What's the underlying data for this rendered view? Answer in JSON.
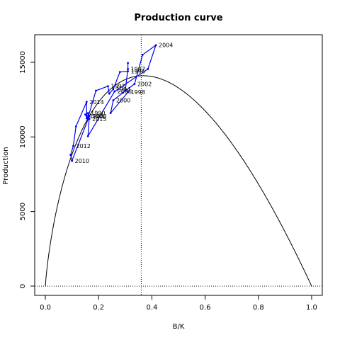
{
  "chart_data": {
    "type": "line",
    "title": "Production curve",
    "xlabel": "B/K",
    "ylabel": "Production",
    "xlim": [
      -0.04,
      1.04
    ],
    "ylim": [
      -620,
      16850
    ],
    "x_ticks": [
      0,
      0.2,
      0.4,
      0.6,
      0.8,
      1
    ],
    "x_tick_labels": [
      "0.0",
      "0.2",
      "0.4",
      "0.6",
      "0.8",
      "1.0"
    ],
    "y_ticks": [
      0,
      5000,
      10000,
      15000
    ],
    "y_tick_labels": [
      "0",
      "5000",
      "10000",
      "15000"
    ],
    "grid": false,
    "colors": {
      "curve": "#000000",
      "trajectory": "#0000ee",
      "reference": "#000000"
    },
    "production_curve": {
      "x_at_max": 0.36,
      "max_production": 14100
    },
    "reference_lines": {
      "vertical_x": 0.36,
      "horizontal_y": 0
    },
    "series": [
      {
        "points": [
          {
            "x": 0.155,
            "y": 11400,
            "label": "1988"
          },
          {
            "x": 0.15,
            "y": 11500,
            "label": ""
          },
          {
            "x": 0.16,
            "y": 11600,
            "label": "1990"
          },
          {
            "x": 0.16,
            "y": 11300,
            "label": ""
          },
          {
            "x": 0.19,
            "y": 13100,
            "label": ""
          },
          {
            "x": 0.235,
            "y": 13400,
            "label": "1992"
          },
          {
            "x": 0.24,
            "y": 12900,
            "label": ""
          },
          {
            "x": 0.255,
            "y": 13200,
            "label": "1994"
          },
          {
            "x": 0.28,
            "y": 14350,
            "label": ""
          },
          {
            "x": 0.31,
            "y": 14400,
            "label": "1996"
          },
          {
            "x": 0.31,
            "y": 14950,
            "label": ""
          },
          {
            "x": 0.31,
            "y": 14550,
            "label": "1997"
          },
          {
            "x": 0.3,
            "y": 13100,
            "label": ""
          },
          {
            "x": 0.31,
            "y": 13000,
            "label": "1998"
          },
          {
            "x": 0.245,
            "y": 11600,
            "label": ""
          },
          {
            "x": 0.255,
            "y": 12450,
            "label": "2000"
          },
          {
            "x": 0.29,
            "y": 12950,
            "label": ""
          },
          {
            "x": 0.335,
            "y": 13550,
            "label": "2002"
          },
          {
            "x": 0.365,
            "y": 15500,
            "label": ""
          },
          {
            "x": 0.415,
            "y": 16150,
            "label": "2004"
          },
          {
            "x": 0.385,
            "y": 14550,
            "label": ""
          },
          {
            "x": 0.26,
            "y": 13050,
            "label": "2006"
          },
          {
            "x": 0.16,
            "y": 10050,
            "label": ""
          },
          {
            "x": 0.165,
            "y": 11400,
            "label": "2008"
          },
          {
            "x": 0.1,
            "y": 8400,
            "label": ""
          },
          {
            "x": 0.1,
            "y": 8400,
            "label": "2010"
          },
          {
            "x": 0.095,
            "y": 8800,
            "label": ""
          },
          {
            "x": 0.105,
            "y": 9400,
            "label": "2012"
          },
          {
            "x": 0.115,
            "y": 10700,
            "label": ""
          },
          {
            "x": 0.155,
            "y": 12350,
            "label": "2014"
          },
          {
            "x": 0.155,
            "y": 11250,
            "label": ""
          },
          {
            "x": 0.165,
            "y": 11200,
            "label": "2015"
          }
        ]
      }
    ]
  }
}
